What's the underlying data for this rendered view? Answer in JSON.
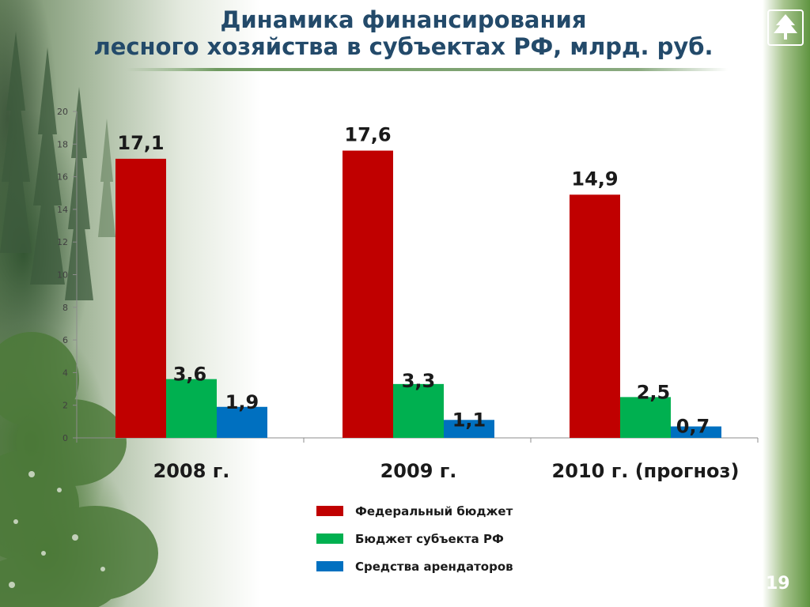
{
  "slide": {
    "title_line1": "Динамика финансирования",
    "title_line2": "лесного хозяйства в субъектах РФ, млрд. руб.",
    "page_number": "19"
  },
  "chart_data": {
    "type": "bar",
    "categories": [
      "2008 г.",
      "2009 г.",
      "2010 г. (прогноз)"
    ],
    "series": [
      {
        "name": "Федеральный бюджет",
        "color": "#c00000",
        "values": [
          17.1,
          17.6,
          14.9
        ],
        "labels": [
          "17,1",
          "17,6",
          "14,9"
        ]
      },
      {
        "name": "Бюджет субъекта РФ",
        "color": "#00b050",
        "values": [
          3.6,
          3.3,
          2.5
        ],
        "labels": [
          "3,6",
          "3,3",
          "2,5"
        ]
      },
      {
        "name": "Средства арендаторов",
        "color": "#0070c0",
        "values": [
          1.9,
          1.1,
          0.7
        ],
        "labels": [
          "1,9",
          "1,1",
          "0,7"
        ]
      }
    ],
    "ylim": [
      0,
      20
    ],
    "yticks": [
      "0",
      "2",
      "4",
      "6",
      "8",
      "10",
      "12",
      "14",
      "16",
      "18",
      "20"
    ],
    "legend_position": "bottom-center",
    "grid": false
  }
}
